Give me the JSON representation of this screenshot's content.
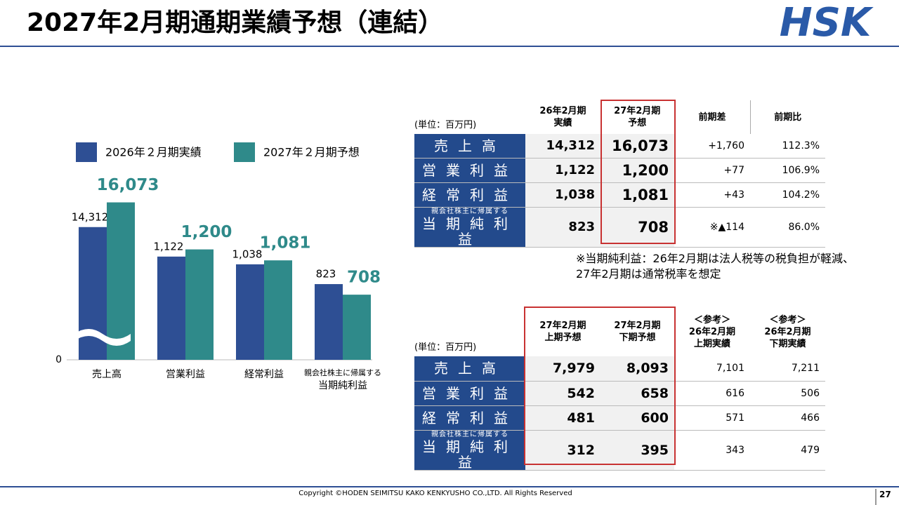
{
  "header": {
    "title": "2027年2月期通期業績予想（連結）",
    "logo": "HSK"
  },
  "chart_data": {
    "type": "bar",
    "categories": [
      "売上高",
      "営業利益",
      "経常利益",
      "当期純利益"
    ],
    "category_notes": [
      null,
      null,
      null,
      "親会社株主に帰属する"
    ],
    "series": [
      {
        "name": "2026年２月期実績",
        "color": "#2e4f94",
        "values": [
          14312,
          1122,
          1038,
          823
        ],
        "value_labels": [
          "14,312",
          "1,122",
          "1,038",
          "823"
        ]
      },
      {
        "name": "2027年２月期予想",
        "color": "#2f8a8a",
        "values": [
          16073,
          1200,
          1081,
          708
        ],
        "value_labels": [
          "16,073",
          "1,200",
          "1,081",
          "708"
        ]
      }
    ],
    "ylim": [
      0,
      1700
    ],
    "ylim_upper": [
      6500,
      17000
    ],
    "axis_break": 250,
    "yticks": [
      0
    ],
    "legend": "top"
  },
  "table1": {
    "unit": "(単位：百万円)",
    "columns": [
      "26年2月期\n実績",
      "27年2月期\n予想",
      "前期差",
      "前期比"
    ],
    "rows": [
      {
        "label": "売上高",
        "cells": [
          "14,312",
          "16,073",
          "+1,760",
          "112.3%"
        ]
      },
      {
        "label": "営業利益",
        "cells": [
          "1,122",
          "1,200",
          "+77",
          "106.9%"
        ]
      },
      {
        "label": "経常利益",
        "cells": [
          "1,038",
          "1,081",
          "+43",
          "104.2%"
        ]
      },
      {
        "note": "親会社株主に帰属する",
        "label": "当期純利益",
        "cells": [
          "823",
          "708",
          "※▲114",
          "86.0%"
        ]
      }
    ]
  },
  "footnote": "※当期純利益：26年2月期は法人税等の税負担が軽減、\n27年2月期は通常税率を想定",
  "table2": {
    "unit": "(単位：百万円)",
    "columns": [
      "27年2月期\n上期予想",
      "27年2月期\n下期予想",
      "＜参考＞\n26年2月期\n上期実績",
      "＜参考＞\n26年2月期\n下期実績"
    ],
    "rows": [
      {
        "label": "売上高",
        "cells": [
          "7,979",
          "8,093",
          "7,101",
          "7,211"
        ]
      },
      {
        "label": "営業利益",
        "cells": [
          "542",
          "658",
          "616",
          "506"
        ]
      },
      {
        "label": "経常利益",
        "cells": [
          "481",
          "600",
          "571",
          "466"
        ]
      },
      {
        "note": "親会社株主に帰属する",
        "label": "当期純利益",
        "cells": [
          "312",
          "395",
          "343",
          "479"
        ]
      }
    ]
  },
  "footer": {
    "copyright": "Copyright ©HODEN SEIMITSU KAKO KENKYUSHO CO.,LTD. All Rights Reserved",
    "page": "27"
  }
}
